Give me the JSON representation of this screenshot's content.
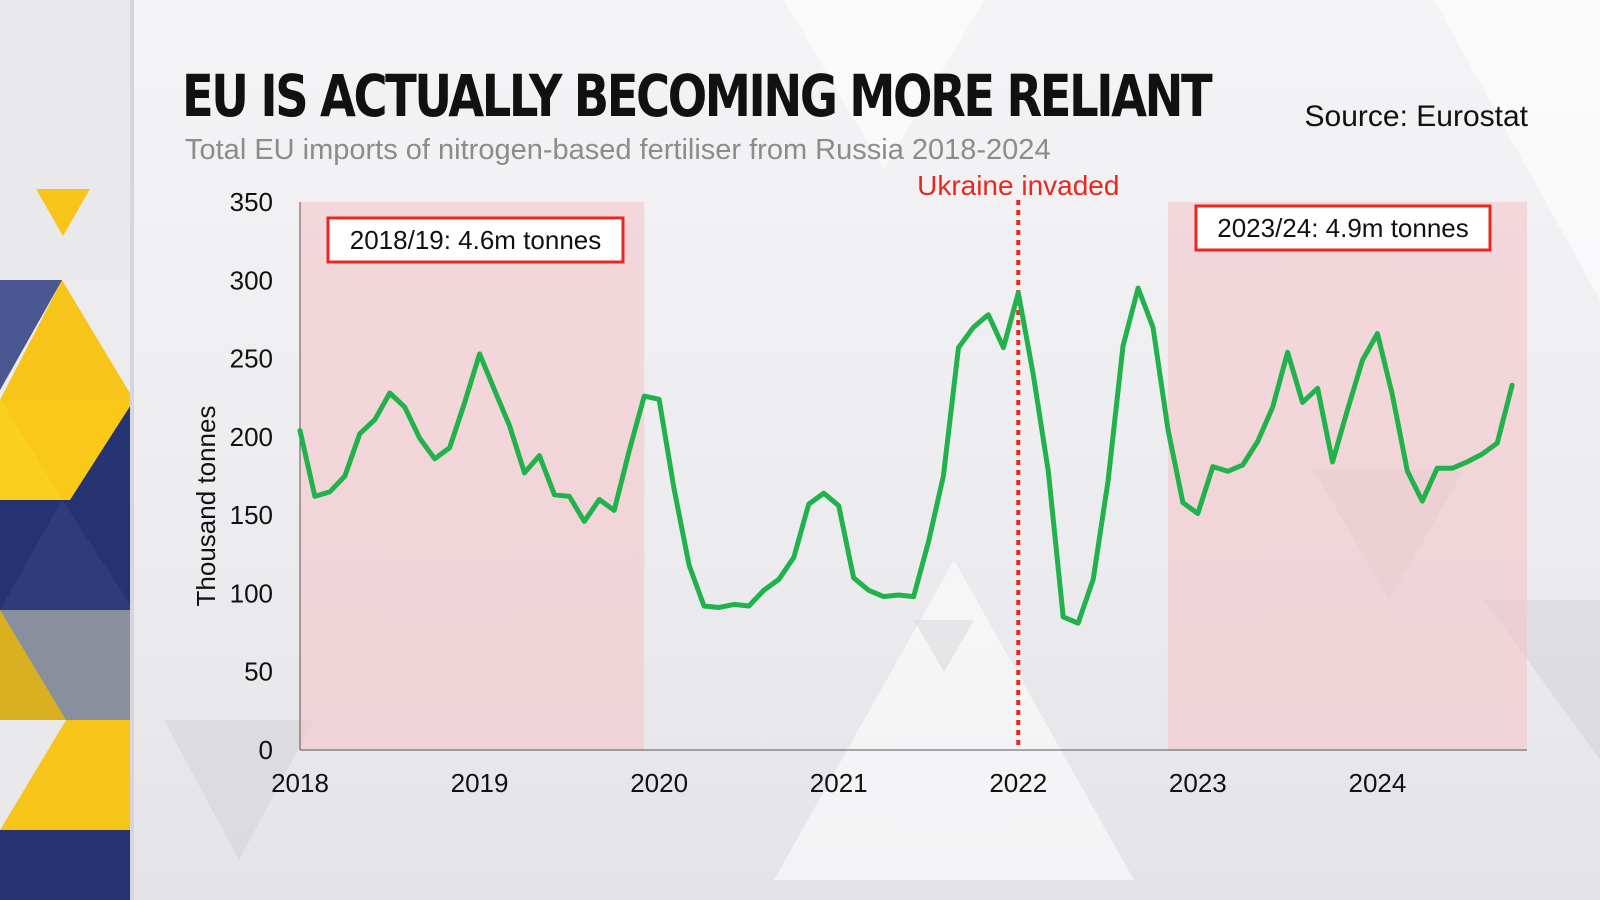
{
  "header": {
    "title": "EU IS ACTUALLY BECOMING MORE RELIANT",
    "subtitle": "Total EU imports of nitrogen-based fertiliser from Russia 2018-2024",
    "source": "Source: Eurostat"
  },
  "colors": {
    "line": "#22b24c",
    "event": "#e8281e",
    "shade": "#f4c6cc",
    "box_border": "#e8281e",
    "navy": "#2a3a7a",
    "yellow": "#f7c41a"
  },
  "chart_data": {
    "type": "line",
    "title": "EU IS ACTUALLY BECOMING MORE RELIANT",
    "subtitle": "Total EU imports of nitrogen-based fertiliser from Russia 2018-2024",
    "xlabel": "",
    "ylabel": "Thousand tonnes",
    "xlim": [
      2018,
      2024.833
    ],
    "ylim": [
      0,
      350
    ],
    "yticks": [
      0,
      50,
      100,
      150,
      200,
      250,
      300,
      350
    ],
    "xticks": [
      2018,
      2019,
      2020,
      2021,
      2022,
      2023,
      2024
    ],
    "grid": false,
    "legend": "none",
    "series": [
      {
        "values": [
          [
            2018.0,
            204
          ],
          [
            2018.083,
            162
          ],
          [
            2018.167,
            165
          ],
          [
            2018.25,
            175
          ],
          [
            2018.333,
            202
          ],
          [
            2018.417,
            211
          ],
          [
            2018.5,
            228
          ],
          [
            2018.583,
            219
          ],
          [
            2018.667,
            199
          ],
          [
            2018.75,
            186
          ],
          [
            2018.833,
            193
          ],
          [
            2018.917,
            222
          ],
          [
            2019.0,
            253
          ],
          [
            2019.083,
            230
          ],
          [
            2019.167,
            207
          ],
          [
            2019.25,
            177
          ],
          [
            2019.333,
            188
          ],
          [
            2019.417,
            163
          ],
          [
            2019.5,
            162
          ],
          [
            2019.583,
            146
          ],
          [
            2019.667,
            160
          ],
          [
            2019.75,
            153
          ],
          [
            2019.833,
            191
          ],
          [
            2019.917,
            226
          ],
          [
            2020.0,
            224
          ],
          [
            2020.083,
            167
          ],
          [
            2020.167,
            118
          ],
          [
            2020.25,
            92
          ],
          [
            2020.333,
            91
          ],
          [
            2020.417,
            93
          ],
          [
            2020.5,
            92
          ],
          [
            2020.583,
            102
          ],
          [
            2020.667,
            109
          ],
          [
            2020.75,
            123
          ],
          [
            2020.833,
            157
          ],
          [
            2020.917,
            164
          ],
          [
            2021.0,
            156
          ],
          [
            2021.083,
            110
          ],
          [
            2021.167,
            102
          ],
          [
            2021.25,
            98
          ],
          [
            2021.333,
            99
          ],
          [
            2021.417,
            98
          ],
          [
            2021.5,
            133
          ],
          [
            2021.583,
            175
          ],
          [
            2021.667,
            257
          ],
          [
            2021.75,
            270
          ],
          [
            2021.833,
            278
          ],
          [
            2021.917,
            257
          ],
          [
            2022.0,
            292
          ],
          [
            2022.083,
            240
          ],
          [
            2022.167,
            178
          ],
          [
            2022.25,
            85
          ],
          [
            2022.333,
            81
          ],
          [
            2022.417,
            109
          ],
          [
            2022.5,
            172
          ],
          [
            2022.583,
            258
          ],
          [
            2022.667,
            295
          ],
          [
            2022.75,
            270
          ],
          [
            2022.833,
            205
          ],
          [
            2022.917,
            158
          ],
          [
            2023.0,
            151
          ],
          [
            2023.083,
            181
          ],
          [
            2023.167,
            178
          ],
          [
            2023.25,
            182
          ],
          [
            2023.333,
            197
          ],
          [
            2023.417,
            219
          ],
          [
            2023.5,
            254
          ],
          [
            2023.583,
            222
          ],
          [
            2023.667,
            231
          ],
          [
            2023.75,
            184
          ],
          [
            2023.833,
            217
          ],
          [
            2023.917,
            249
          ],
          [
            2024.0,
            266
          ],
          [
            2024.083,
            227
          ],
          [
            2024.167,
            178
          ],
          [
            2024.25,
            159
          ],
          [
            2024.333,
            180
          ],
          [
            2024.417,
            180
          ],
          [
            2024.5,
            184
          ],
          [
            2024.583,
            189
          ],
          [
            2024.667,
            196
          ],
          [
            2024.75,
            233
          ]
        ]
      }
    ],
    "shaded_regions": [
      {
        "from": 2018.0,
        "to": 2019.917,
        "label": "2018/19: 4.6m tonnes"
      },
      {
        "from": 2022.833,
        "to": 2024.833,
        "label": "2023/24: 4.9m tonnes"
      }
    ],
    "events": [
      {
        "x": 2022.0,
        "label": "Ukraine invaded"
      }
    ]
  }
}
